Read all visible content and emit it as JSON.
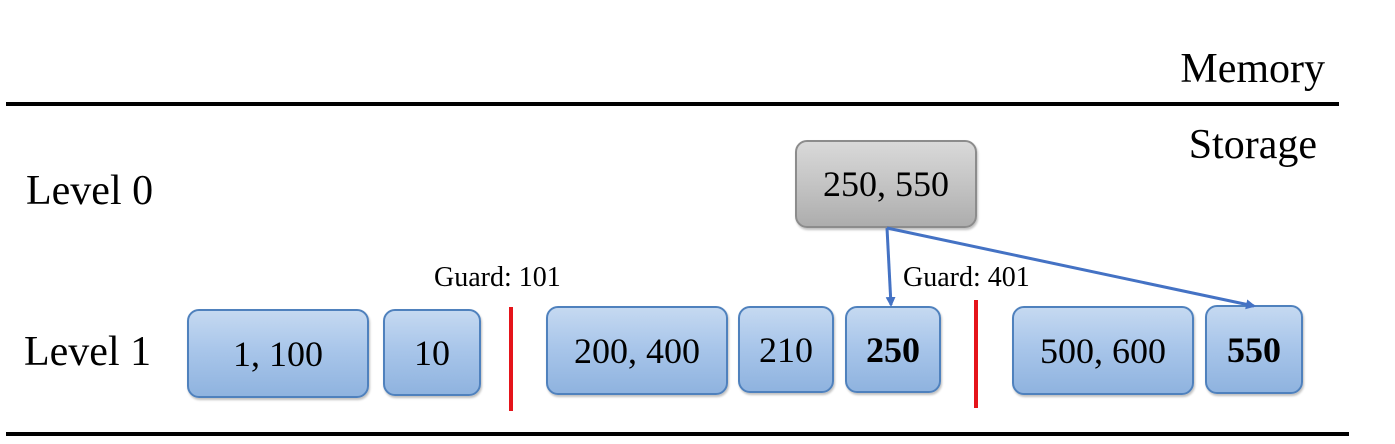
{
  "regions": {
    "memory": "Memory",
    "storage": "Storage"
  },
  "levels": {
    "level0": "Level 0",
    "level1": "Level 1"
  },
  "guards": [
    {
      "label": "Guard: 101"
    },
    {
      "label": "Guard: 401"
    }
  ],
  "level0_sstables": [
    {
      "label": "250, 550"
    }
  ],
  "level1_sstables": [
    {
      "label": "1, 100",
      "bold": false
    },
    {
      "label": "10",
      "bold": false
    },
    {
      "label": "200, 400",
      "bold": false
    },
    {
      "label": "210",
      "bold": false
    },
    {
      "label": "250",
      "bold": true
    },
    {
      "label": "500, 600",
      "bold": false
    },
    {
      "label": "550",
      "bold": true
    }
  ],
  "colors": {
    "level1_fill": "#a9c6ea",
    "level1_border": "#4f81bd",
    "level0_fill": "#c4c4c4",
    "guard_line": "#e5141a",
    "arrow": "#4472c4"
  }
}
